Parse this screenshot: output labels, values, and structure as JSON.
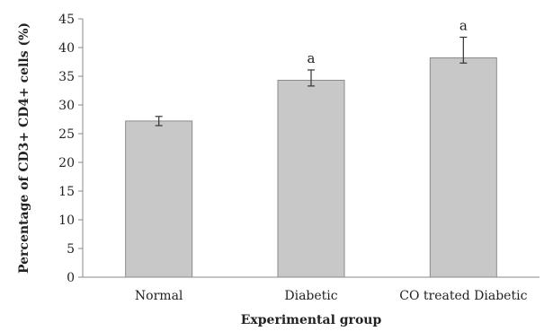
{
  "chart_data": {
    "type": "bar",
    "categories": [
      "Normal",
      "Diabetic",
      "CO treated Diabetic"
    ],
    "values": [
      27.2,
      34.3,
      38.2
    ],
    "error_low": [
      26.4,
      33.3,
      37.3
    ],
    "error_high": [
      28.0,
      36.1,
      41.8
    ],
    "significance_labels": [
      "",
      "a",
      "a"
    ],
    "xlabel": "Experimental group",
    "ylabel": "Percentage of CD3+ CD4+ cells (%)",
    "ylim": [
      0,
      45
    ],
    "yticks": [
      0,
      5,
      10,
      15,
      20,
      25,
      30,
      35,
      40,
      45
    ],
    "grid": false,
    "legend": "none",
    "bar_color": "#c8c8c8",
    "bar_edge_color": "#8a8a8a",
    "axis_color": "#8a8a8a"
  }
}
